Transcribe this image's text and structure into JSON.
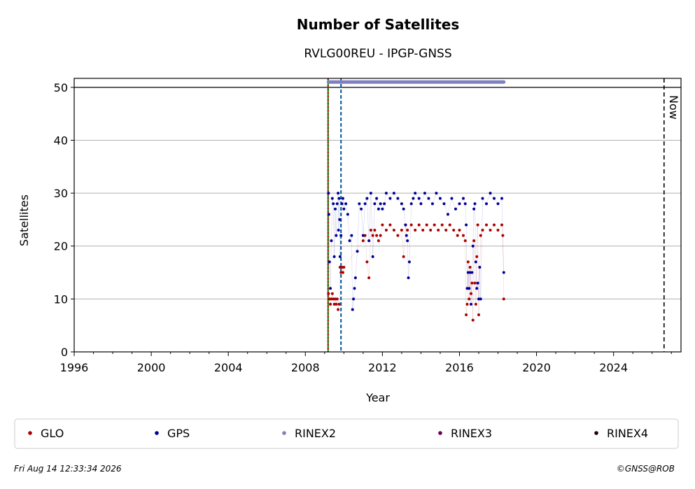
{
  "chart_data": {
    "type": "scatter",
    "title": "Number of Satellites",
    "subtitle": "RVLG00REU - IPGP-GNSS",
    "xlabel": "Year",
    "ylabel": "Satellites",
    "xlim": [
      1996,
      2027.5
    ],
    "ylim": [
      0,
      51.7
    ],
    "x_ticks": [
      1996,
      2000,
      2004,
      2008,
      2012,
      2016,
      2020,
      2024
    ],
    "y_ticks": [
      0,
      10,
      20,
      30,
      40,
      50
    ],
    "grid": "horizontal",
    "now_label": "Now",
    "now_x": 2026.62,
    "vlines": [
      {
        "x": 2009.18,
        "color": "#008000",
        "style": "solid"
      },
      {
        "x": 2009.18,
        "color": "#cc0000",
        "style": "dotted"
      },
      {
        "x": 2009.85,
        "color": "#005599",
        "style": "dashed"
      }
    ],
    "series": [
      {
        "name": "GLO",
        "color": "#aa0000"
      },
      {
        "name": "GPS",
        "color": "#000099"
      },
      {
        "name": "RINEX2",
        "color": "#8080c0"
      },
      {
        "name": "RINEX3",
        "color": "#6a0055"
      },
      {
        "name": "RINEX4",
        "color": "#220011"
      }
    ],
    "rinex2_span": {
      "x": [
        2009.2,
        2018.3
      ],
      "y": 51
    },
    "gps_points": [
      [
        2009.2,
        30
      ],
      [
        2009.22,
        26
      ],
      [
        2009.25,
        17
      ],
      [
        2009.3,
        12
      ],
      [
        2009.35,
        21
      ],
      [
        2009.4,
        29
      ],
      [
        2009.45,
        28
      ],
      [
        2009.5,
        18
      ],
      [
        2009.55,
        27
      ],
      [
        2009.6,
        22
      ],
      [
        2009.65,
        28
      ],
      [
        2009.7,
        30
      ],
      [
        2009.72,
        23
      ],
      [
        2009.75,
        29
      ],
      [
        2009.78,
        25
      ],
      [
        2009.8,
        18
      ],
      [
        2009.85,
        22
      ],
      [
        2009.9,
        28
      ],
      [
        2009.95,
        29
      ],
      [
        2010.0,
        27
      ],
      [
        2010.1,
        28
      ],
      [
        2010.2,
        26
      ],
      [
        2010.3,
        21
      ],
      [
        2010.4,
        22
      ],
      [
        2010.45,
        8
      ],
      [
        2010.5,
        10
      ],
      [
        2010.55,
        12
      ],
      [
        2010.6,
        14
      ],
      [
        2010.7,
        19
      ],
      [
        2010.8,
        28
      ],
      [
        2010.9,
        27
      ],
      [
        2011.0,
        22
      ],
      [
        2011.1,
        28
      ],
      [
        2011.2,
        29
      ],
      [
        2011.3,
        21
      ],
      [
        2011.4,
        30
      ],
      [
        2011.5,
        18
      ],
      [
        2011.6,
        28
      ],
      [
        2011.7,
        29
      ],
      [
        2011.8,
        27
      ],
      [
        2011.9,
        28
      ],
      [
        2012.0,
        27
      ],
      [
        2012.1,
        28
      ],
      [
        2012.2,
        30
      ],
      [
        2012.4,
        29
      ],
      [
        2012.6,
        30
      ],
      [
        2012.8,
        29
      ],
      [
        2013.0,
        28
      ],
      [
        2013.1,
        27
      ],
      [
        2013.2,
        24
      ],
      [
        2013.25,
        22
      ],
      [
        2013.3,
        21
      ],
      [
        2013.35,
        14
      ],
      [
        2013.4,
        17
      ],
      [
        2013.5,
        28
      ],
      [
        2013.6,
        29
      ],
      [
        2013.7,
        30
      ],
      [
        2013.9,
        29
      ],
      [
        2014.0,
        28
      ],
      [
        2014.2,
        30
      ],
      [
        2014.4,
        29
      ],
      [
        2014.6,
        28
      ],
      [
        2014.8,
        30
      ],
      [
        2015.0,
        29
      ],
      [
        2015.2,
        28
      ],
      [
        2015.4,
        26
      ],
      [
        2015.6,
        29
      ],
      [
        2015.8,
        27
      ],
      [
        2016.0,
        28
      ],
      [
        2016.2,
        29
      ],
      [
        2016.3,
        28
      ],
      [
        2016.35,
        24
      ],
      [
        2016.4,
        12
      ],
      [
        2016.45,
        15
      ],
      [
        2016.5,
        12
      ],
      [
        2016.55,
        15
      ],
      [
        2016.6,
        9
      ],
      [
        2016.65,
        15
      ],
      [
        2016.7,
        20
      ],
      [
        2016.75,
        27
      ],
      [
        2016.8,
        28
      ],
      [
        2016.85,
        17
      ],
      [
        2016.9,
        12
      ],
      [
        2016.95,
        13
      ],
      [
        2017.0,
        10
      ],
      [
        2017.05,
        16
      ],
      [
        2017.1,
        10
      ],
      [
        2017.2,
        29
      ],
      [
        2017.4,
        28
      ],
      [
        2017.6,
        30
      ],
      [
        2017.8,
        29
      ],
      [
        2018.0,
        28
      ],
      [
        2018.2,
        29
      ],
      [
        2018.3,
        15
      ]
    ],
    "glo_points": [
      [
        2009.2,
        11
      ],
      [
        2009.25,
        10
      ],
      [
        2009.3,
        9
      ],
      [
        2009.35,
        10
      ],
      [
        2009.4,
        11
      ],
      [
        2009.45,
        10
      ],
      [
        2009.5,
        9
      ],
      [
        2009.55,
        10
      ],
      [
        2009.6,
        9
      ],
      [
        2009.65,
        10
      ],
      [
        2009.7,
        8
      ],
      [
        2009.75,
        9
      ],
      [
        2009.8,
        16
      ],
      [
        2009.85,
        15
      ],
      [
        2009.9,
        16
      ],
      [
        2009.95,
        15
      ],
      [
        2010.0,
        16
      ],
      [
        2011.0,
        21
      ],
      [
        2011.1,
        22
      ],
      [
        2011.2,
        17
      ],
      [
        2011.3,
        14
      ],
      [
        2011.4,
        23
      ],
      [
        2011.5,
        22
      ],
      [
        2011.6,
        23
      ],
      [
        2011.7,
        22
      ],
      [
        2011.8,
        21
      ],
      [
        2011.9,
        22
      ],
      [
        2012.0,
        24
      ],
      [
        2012.2,
        23
      ],
      [
        2012.4,
        24
      ],
      [
        2012.6,
        23
      ],
      [
        2012.8,
        22
      ],
      [
        2013.0,
        23
      ],
      [
        2013.1,
        18
      ],
      [
        2013.2,
        24
      ],
      [
        2013.3,
        23
      ],
      [
        2013.5,
        24
      ],
      [
        2013.7,
        23
      ],
      [
        2013.9,
        24
      ],
      [
        2014.1,
        23
      ],
      [
        2014.3,
        24
      ],
      [
        2014.5,
        23
      ],
      [
        2014.7,
        24
      ],
      [
        2014.9,
        23
      ],
      [
        2015.1,
        24
      ],
      [
        2015.3,
        23
      ],
      [
        2015.5,
        24
      ],
      [
        2015.7,
        23
      ],
      [
        2015.9,
        22
      ],
      [
        2016.0,
        23
      ],
      [
        2016.2,
        22
      ],
      [
        2016.3,
        21
      ],
      [
        2016.35,
        7
      ],
      [
        2016.4,
        9
      ],
      [
        2016.45,
        17
      ],
      [
        2016.5,
        10
      ],
      [
        2016.55,
        16
      ],
      [
        2016.6,
        11
      ],
      [
        2016.65,
        13
      ],
      [
        2016.7,
        6
      ],
      [
        2016.75,
        21
      ],
      [
        2016.8,
        13
      ],
      [
        2016.85,
        9
      ],
      [
        2016.9,
        18
      ],
      [
        2016.95,
        24
      ],
      [
        2017.0,
        7
      ],
      [
        2017.1,
        22
      ],
      [
        2017.2,
        23
      ],
      [
        2017.4,
        24
      ],
      [
        2017.6,
        23
      ],
      [
        2017.8,
        24
      ],
      [
        2018.0,
        23
      ],
      [
        2018.2,
        24
      ],
      [
        2018.25,
        22
      ],
      [
        2018.3,
        10
      ]
    ]
  },
  "legend": {
    "items": [
      "GLO",
      "GPS",
      "RINEX2",
      "RINEX3",
      "RINEX4"
    ]
  },
  "footer": {
    "timestamp": "Fri Aug 14 12:33:34 2026",
    "copyright": "©GNSS@ROB"
  }
}
